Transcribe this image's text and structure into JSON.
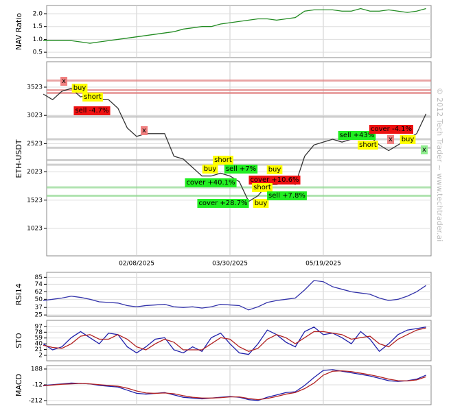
{
  "watermark": "© 2012 Tech Trader ~ www.techtrader.ai",
  "chart_data": [
    {
      "type": "line",
      "ylabel": "NAV Ratio",
      "ylim": [
        0.29,
        2.32
      ],
      "yticks": [
        0.5,
        {
          "value": 1,
          "label": "1.0"
        },
        1.5,
        {
          "value": 2,
          "label": "2.0"
        }
      ],
      "grid": true,
      "series": [
        {
          "color": "#228b22",
          "values": [
            0.95,
            0.95,
            0.95,
            0.95,
            0.9,
            0.85,
            0.9,
            0.95,
            1.0,
            1.05,
            1.1,
            1.15,
            1.2,
            1.25,
            1.3,
            1.4,
            1.45,
            1.5,
            1.5,
            1.6,
            1.65,
            1.7,
            1.75,
            1.8,
            1.8,
            1.75,
            1.8,
            1.85,
            2.1,
            2.15,
            2.15,
            2.15,
            2.1,
            2.1,
            2.2,
            2.1,
            2.1,
            2.15,
            2.1,
            2.05,
            2.1,
            2.2
          ]
        }
      ]
    },
    {
      "type": "line",
      "ylabel": "ETH-USDT",
      "ylim": [
        537,
        3972
      ],
      "yticks": [
        1023,
        1523,
        2023,
        2523,
        3023,
        3523
      ],
      "grid": true,
      "categories": [
        null,
        null,
        null,
        null,
        null,
        null,
        null,
        null,
        null,
        null,
        "02/08/2025",
        null,
        null,
        null,
        null,
        null,
        null,
        null,
        null,
        null,
        "03/30/2025",
        null,
        null,
        null,
        null,
        null,
        null,
        null,
        null,
        null,
        "05/19/2025",
        null,
        null,
        null,
        null,
        null,
        null,
        null,
        null,
        null,
        null,
        null
      ],
      "series": [
        {
          "color": "#333333",
          "values": [
            3400,
            3300,
            3450,
            3500,
            3350,
            3400,
            3300,
            3300,
            3150,
            2800,
            2650,
            2700,
            2700,
            2700,
            2300,
            2250,
            2100,
            1950,
            1950,
            2000,
            1950,
            1850,
            1500,
            1600,
            1800,
            1800,
            1850,
            1800,
            2300,
            2500,
            2550,
            2600,
            2550,
            2600,
            2650,
            2650,
            2500,
            2400,
            2500,
            2600,
            2700,
            3050
          ]
        }
      ],
      "levels": [
        {
          "value": 3640,
          "color": "#e08080"
        },
        {
          "value": 3470,
          "color": "#e08080"
        },
        {
          "value": 3420,
          "color": "#e08080"
        },
        {
          "value": 3000,
          "color": "#bbbbbb"
        },
        {
          "value": 2600,
          "color": "#bbbbbb"
        },
        {
          "value": 2450,
          "color": "#bbbbbb"
        },
        {
          "value": 2230,
          "color": "#bbbbbb"
        },
        {
          "value": 2150,
          "color": "#bbbbbb"
        },
        {
          "value": 1750,
          "color": "#90d890"
        },
        {
          "value": 1600,
          "color": "#90d890"
        }
      ],
      "annotations": [
        {
          "text": "x",
          "color": "#f08080"
        },
        {
          "text": "buy",
          "color": "#ffff00"
        },
        {
          "text": "short",
          "color": "#ffff00"
        },
        {
          "text": "sell -4.7%",
          "color": "#ee1111"
        },
        {
          "text": "x",
          "color": "#f08080"
        },
        {
          "text": "short",
          "color": "#ffff00"
        },
        {
          "text": "buy",
          "color": "#ffff00"
        },
        {
          "text": "sell +7%",
          "color": "#22ee22"
        },
        {
          "text": "buy",
          "color": "#ffff00"
        },
        {
          "text": "cover +10.6%",
          "color": "#ee1111"
        },
        {
          "text": "cover +40.1%",
          "color": "#22ee22"
        },
        {
          "text": "short",
          "color": "#ffff00"
        },
        {
          "text": "buy",
          "color": "#ffff00"
        },
        {
          "text": "sell +7.8%",
          "color": "#22ee22"
        },
        {
          "text": "cover +28.7%",
          "color": "#22ee22"
        },
        {
          "text": "sell +43%",
          "color": "#22ee22"
        },
        {
          "text": "cover -4.1%",
          "color": "#ee1111"
        },
        {
          "text": "short",
          "color": "#ffff00"
        },
        {
          "text": "x",
          "color": "#f08080"
        },
        {
          "text": "buy",
          "color": "#ffff00"
        },
        {
          "text": "x",
          "color": "#90ee90"
        }
      ]
    },
    {
      "type": "line",
      "ylabel": "RSI14",
      "ylim": [
        23,
        93
      ],
      "yticks": [
        25,
        37,
        50,
        62,
        74,
        85
      ],
      "grid": true,
      "series": [
        {
          "color": "#3333aa",
          "values": [
            48,
            50,
            52,
            55,
            53,
            50,
            46,
            45,
            44,
            40,
            38,
            40,
            41,
            42,
            38,
            37,
            38,
            36,
            38,
            42,
            41,
            40,
            33,
            38,
            45,
            48,
            50,
            52,
            65,
            80,
            78,
            70,
            66,
            62,
            60,
            58,
            52,
            48,
            50,
            55,
            62,
            72
          ]
        }
      ]
    },
    {
      "type": "line",
      "ylabel": "STO",
      "ylim": [
        -16,
        117
      ],
      "yticks": [
        2,
        21,
        40,
        59,
        78,
        97
      ],
      "grid": true,
      "series": [
        {
          "color": "#1f1faa",
          "values": [
            40,
            20,
            30,
            60,
            80,
            60,
            40,
            75,
            70,
            30,
            10,
            30,
            55,
            60,
            20,
            10,
            30,
            15,
            60,
            75,
            40,
            10,
            5,
            40,
            85,
            70,
            45,
            30,
            80,
            95,
            70,
            75,
            60,
            40,
            80,
            55,
            15,
            40,
            70,
            85,
            90,
            95
          ]
        },
        {
          "color": "#b22222",
          "values": [
            35,
            28,
            25,
            40,
            65,
            70,
            55,
            55,
            70,
            55,
            30,
            20,
            40,
            55,
            45,
            20,
            20,
            20,
            40,
            60,
            55,
            30,
            15,
            25,
            55,
            70,
            60,
            40,
            60,
            80,
            80,
            75,
            70,
            55,
            60,
            65,
            40,
            30,
            55,
            70,
            85,
            92
          ]
        }
      ]
    },
    {
      "type": "line",
      "ylabel": "MACD",
      "ylim": [
        -264,
        231
      ],
      "yticks": [
        -212,
        -12,
        188
      ],
      "grid": true,
      "series": [
        {
          "color": "#1f1faa",
          "values": [
            -20,
            -10,
            0,
            10,
            5,
            0,
            -20,
            -30,
            -40,
            -80,
            -120,
            -130,
            -120,
            -110,
            -140,
            -170,
            -180,
            -190,
            -180,
            -170,
            -160,
            -170,
            -200,
            -210,
            -170,
            -140,
            -110,
            -100,
            -20,
            80,
            170,
            180,
            160,
            140,
            120,
            100,
            70,
            40,
            30,
            40,
            60,
            110
          ]
        },
        {
          "color": "#b22222",
          "values": [
            -25,
            -15,
            -5,
            0,
            5,
            0,
            -10,
            -20,
            -30,
            -55,
            -90,
            -115,
            -120,
            -115,
            -125,
            -150,
            -170,
            -180,
            -180,
            -175,
            -165,
            -165,
            -185,
            -200,
            -185,
            -160,
            -130,
            -110,
            -60,
            10,
            110,
            160,
            165,
            155,
            135,
            115,
            90,
            60,
            40,
            38,
            50,
            90
          ]
        }
      ]
    }
  ]
}
